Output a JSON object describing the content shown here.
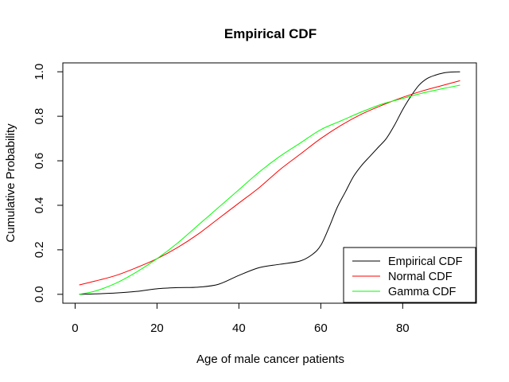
{
  "chart_data": {
    "type": "line",
    "title": "Empirical CDF",
    "xlabel": "Age of male cancer patients",
    "ylabel": "Cumulative Probability",
    "xlim": [
      -3,
      98
    ],
    "ylim": [
      -0.04,
      1.04
    ],
    "x_ticks": [
      0,
      20,
      40,
      60,
      80
    ],
    "x_tick_labels": [
      "0",
      "20",
      "40",
      "60",
      "80"
    ],
    "y_ticks": [
      0,
      0.2,
      0.4,
      0.6,
      0.8,
      1
    ],
    "y_tick_labels": [
      "0.0",
      "0.2",
      "0.4",
      "0.6",
      "0.8",
      "1.0"
    ],
    "grid": false,
    "legend_position": "bottom-right",
    "series": [
      {
        "name": "Empirical CDF",
        "color": "#000000",
        "x": [
          1,
          5,
          10,
          15,
          20,
          25,
          30,
          35,
          40,
          45,
          50,
          55,
          58,
          60,
          62,
          64,
          66,
          68,
          70,
          72,
          74,
          76,
          78,
          80,
          82,
          84,
          86,
          88,
          90,
          92,
          94
        ],
        "y": [
          0.0,
          0.002,
          0.006,
          0.013,
          0.025,
          0.03,
          0.032,
          0.045,
          0.085,
          0.12,
          0.135,
          0.15,
          0.18,
          0.22,
          0.3,
          0.39,
          0.46,
          0.53,
          0.58,
          0.62,
          0.66,
          0.7,
          0.76,
          0.83,
          0.89,
          0.94,
          0.97,
          0.985,
          0.995,
          0.999,
          1.0
        ]
      },
      {
        "name": "Normal CDF",
        "color": "#ff0000",
        "x": [
          1,
          5,
          10,
          15,
          20,
          25,
          30,
          35,
          40,
          45,
          50,
          55,
          60,
          65,
          70,
          75,
          80,
          85,
          90,
          94
        ],
        "y": [
          0.042,
          0.06,
          0.085,
          0.12,
          0.16,
          0.21,
          0.27,
          0.34,
          0.41,
          0.48,
          0.56,
          0.63,
          0.7,
          0.76,
          0.81,
          0.85,
          0.885,
          0.915,
          0.94,
          0.96
        ]
      },
      {
        "name": "Gamma CDF",
        "color": "#00ff00",
        "x": [
          1,
          5,
          10,
          15,
          20,
          25,
          30,
          35,
          40,
          45,
          50,
          55,
          60,
          65,
          70,
          75,
          80,
          85,
          90,
          94
        ],
        "y": [
          0.0,
          0.015,
          0.05,
          0.1,
          0.16,
          0.23,
          0.31,
          0.39,
          0.47,
          0.55,
          0.62,
          0.68,
          0.74,
          0.78,
          0.82,
          0.855,
          0.88,
          0.905,
          0.925,
          0.94
        ]
      }
    ]
  }
}
